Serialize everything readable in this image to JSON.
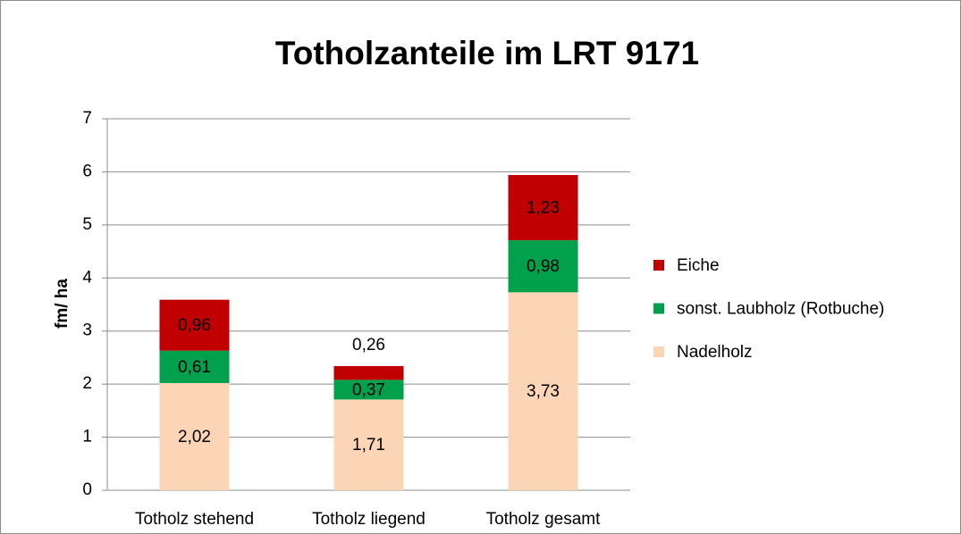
{
  "chart_data": {
    "type": "stacked_bar",
    "title": "Totholzanteile im LRT 9171",
    "y_label": "fm/ ha",
    "categories": [
      "Totholz stehend",
      "Totholz liegend",
      "Totholz gesamt"
    ],
    "series": [
      {
        "name": "Nadelholz",
        "color": "#fbd5b5",
        "values": [
          2.02,
          1.71,
          3.73
        ],
        "value_labels": [
          "2,02",
          "1,71",
          "3,73"
        ]
      },
      {
        "name": "sonst. Laubholz (Rotbuche)",
        "color": "#00a04c",
        "values": [
          0.61,
          0.37,
          0.98
        ],
        "value_labels": [
          "0,61",
          "0,37",
          "0,98"
        ]
      },
      {
        "name": "Eiche",
        "color": "#c00000",
        "values": [
          0.96,
          0.26,
          1.23
        ],
        "value_labels": [
          "0,96",
          "0,26",
          "1,23"
        ]
      }
    ],
    "ylim": [
      0,
      7
    ],
    "yticks": [
      0,
      1,
      2,
      3,
      4,
      5,
      6,
      7
    ],
    "grid": true,
    "legend": "right"
  }
}
